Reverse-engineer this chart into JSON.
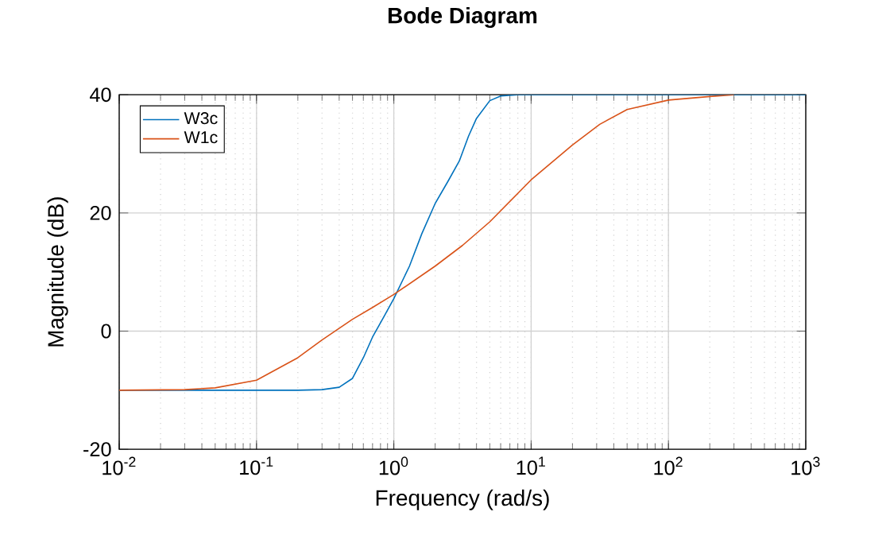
{
  "chart_data": {
    "type": "line",
    "title": "Bode Diagram",
    "xlabel": "Frequency (rad/s)",
    "ylabel": "Magnitude (dB)",
    "log": "x",
    "grid": true,
    "legend": "top left",
    "line_style": "solid",
    "marker": "none",
    "xlim": [
      0.01,
      1000
    ],
    "ylim": [
      -20,
      40
    ],
    "xticks": [
      {
        "value": 0.01,
        "label": "10$^{-2}$"
      },
      {
        "value": 0.1,
        "label": "10$^{-1}$"
      },
      {
        "value": 1,
        "label": "10$^{0}$"
      },
      {
        "value": 10,
        "label": "10$^{1}$"
      },
      {
        "value": 100,
        "label": "10$^{2}$"
      },
      {
        "value": 1000,
        "label": "10$^{3}$"
      }
    ],
    "yticks": [
      -20,
      0,
      20,
      40
    ],
    "series": [
      {
        "name": "W3c",
        "color": "#0072bd",
        "x": [
          0.01,
          0.03,
          0.1,
          0.2,
          0.3,
          0.4,
          0.5,
          0.6,
          0.7,
          0.85,
          1,
          1.3,
          1.6,
          2,
          2.5,
          3,
          3.5,
          4,
          5,
          6,
          8,
          10,
          100,
          1000
        ],
        "values": [
          -10,
          -10,
          -10,
          -10,
          -9.9,
          -9.5,
          -8,
          -4.5,
          -1,
          2.5,
          5.5,
          11,
          16.5,
          21.6,
          25.5,
          28.8,
          33,
          36,
          39,
          39.8,
          40,
          40,
          40,
          40
        ]
      },
      {
        "name": "W1c",
        "color": "#d95319",
        "x": [
          0.01,
          0.03,
          0.05,
          0.1,
          0.2,
          0.3,
          0.5,
          0.7,
          1,
          2,
          3.16,
          5,
          10,
          20,
          31.6,
          50,
          100,
          200,
          300
        ],
        "values": [
          -10,
          -9.9,
          -9.6,
          -8.3,
          -4.5,
          -1.5,
          2,
          4,
          6.2,
          11,
          14.5,
          18.5,
          25.6,
          31.5,
          35,
          37.5,
          39.1,
          39.7,
          40
        ]
      }
    ]
  }
}
